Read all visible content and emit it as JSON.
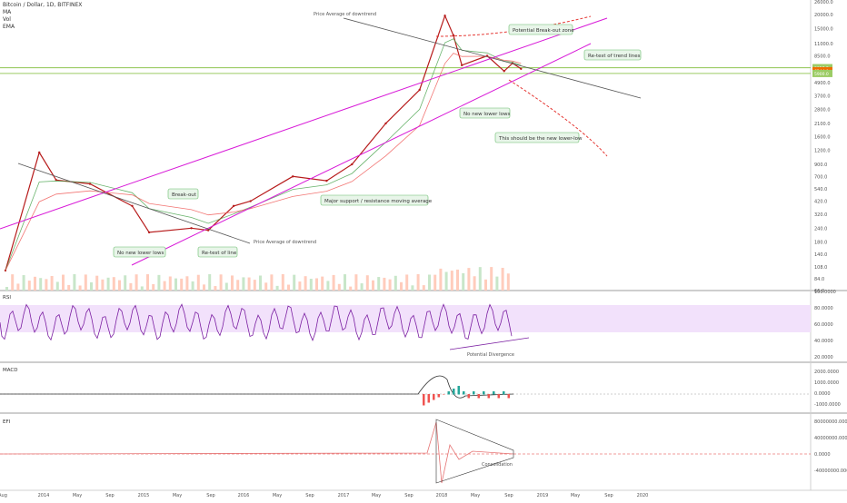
{
  "legend": {
    "symbol": "Bitcoin / Dollar, 1D, BITFINEX",
    "ma": "MA",
    "vol": "Vol",
    "ema": "EMA"
  },
  "price_axis": [
    "26000.0",
    "20000.0",
    "15000.0",
    "11000.0",
    "8500.0",
    "6500.0",
    "4900.0",
    "3700.0",
    "2800.0",
    "2100.0",
    "1600.0",
    "1200.0",
    "900.0",
    "700.0",
    "540.0",
    "420.0",
    "320.0",
    "240.0",
    "180.0",
    "140.0",
    "108.0",
    "84.0",
    "66.0"
  ],
  "current_price_tags": [
    "6650.0",
    "6244.0",
    "5900.0"
  ],
  "rsi": {
    "label": "RSI",
    "axis": [
      "100.0000",
      "80.0000",
      "60.0000",
      "40.0000",
      "20.0000"
    ]
  },
  "macd": {
    "label": "MACD",
    "axis": [
      "2000.0000",
      "1000.0000",
      "0.0000",
      "-1000.0000"
    ]
  },
  "efi": {
    "label": "EFI",
    "axis": [
      "80000000.0000",
      "40000000.0000",
      "0.0000",
      "-40000000.0000"
    ]
  },
  "time_axis": [
    "Aug",
    "2014",
    "May",
    "Sep",
    "2015",
    "May",
    "Sep",
    "2016",
    "May",
    "Sep",
    "2017",
    "May",
    "Sep",
    "2018",
    "May",
    "Sep",
    "2019",
    "May",
    "Sep",
    "2020"
  ],
  "annotations": {
    "price_avg_top": "Price Average of downtrend",
    "price_avg_bottom": "Price Average of downtrend",
    "breakout_zone": "Potential Break-out zone",
    "retest_trend": "Re-test of trend lines",
    "no_lower_lows_right": "No new lower lows",
    "new_lower_low": "This should be the new lower-low",
    "major_support": "Major support / resistance moving average",
    "breakout": "Break-out",
    "no_lower_lows_left": "No new lower lows",
    "retest_line": "Re-test of line",
    "potential_divergence": "Potential Divergence",
    "consolidation": "Consolidation"
  },
  "colors": {
    "price": "#b71c1c",
    "trend_magenta": "#d81bd8",
    "rsi_line": "#7b1fa2",
    "rsi_band": "#f2e1fb",
    "forecast": "#e53935",
    "horizontal_level": "#9ccc65",
    "annotation_fill": "#e8f5e9",
    "annotation_border": "#66bb6a"
  },
  "chart_data": {
    "type": "line",
    "title": "Bitcoin / Dollar, 1D, BITFINEX",
    "y_scale": "log",
    "ylim": [
      66,
      26000
    ],
    "x": [
      "2013-08",
      "2013-12",
      "2014-02",
      "2014-06",
      "2014-11",
      "2015-01",
      "2015-06",
      "2015-08",
      "2015-11",
      "2016-01",
      "2016-06",
      "2016-10",
      "2017-01",
      "2017-05",
      "2017-09",
      "2017-12",
      "2018-01",
      "2018-02",
      "2018-05",
      "2018-07",
      "2018-08",
      "2018-09"
    ],
    "series": [
      {
        "name": "Bitcoin / Dollar",
        "values": [
          100,
          1150,
          650,
          600,
          380,
          220,
          240,
          230,
          380,
          420,
          700,
          640,
          900,
          2100,
          4200,
          19500,
          13000,
          7000,
          8500,
          6200,
          7300,
          6500
        ]
      }
    ]
  }
}
